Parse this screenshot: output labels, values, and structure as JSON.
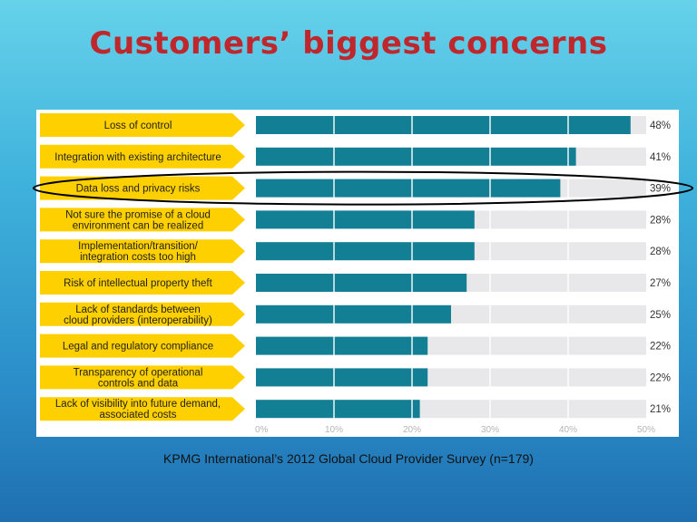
{
  "title": "Customers’ biggest concerns",
  "source": "KPMG International’s 2012 Global Cloud Provider Survey (n=179)",
  "colors": {
    "title": "#c0272d",
    "label_bg": "#ffd000",
    "bar": "#127f94",
    "track": "#e8e8ea",
    "highlight": "#000000",
    "axis_text": "#b5b5b5"
  },
  "chart_data": {
    "type": "bar",
    "orientation": "horizontal",
    "categories": [
      "Loss of control",
      "Integration with existing architecture",
      "Data loss and privacy risks",
      "Not sure the promise of a cloud environment can be realized",
      "Implementation/transition/ integration costs too high",
      "Risk of intellectual property theft",
      "Lack of standards between cloud providers (interoperability)",
      "Legal and regulatory compliance",
      "Transparency of operational controls and data",
      "Lack of visibility into future demand, associated costs"
    ],
    "category_lines": [
      [
        "Loss of control"
      ],
      [
        "Integration with existing architecture"
      ],
      [
        "Data loss and privacy risks"
      ],
      [
        "Not sure the promise of a cloud",
        "environment can be realized"
      ],
      [
        "Implementation/transition/",
        "integration costs too high"
      ],
      [
        "Risk of intellectual property theft"
      ],
      [
        "Lack of standards between",
        "cloud providers (interoperability)"
      ],
      [
        "Legal and regulatory compliance"
      ],
      [
        "Transparency of operational",
        "controls and data"
      ],
      [
        "Lack of visibility into future demand,",
        "associated costs"
      ]
    ],
    "values": [
      48,
      41,
      39,
      28,
      28,
      27,
      25,
      22,
      22,
      21
    ],
    "value_labels": [
      "48%",
      "41%",
      "39%",
      "28%",
      "28%",
      "27%",
      "25%",
      "22%",
      "22%",
      "21%"
    ],
    "xticks": [
      "0%",
      "10%",
      "20%",
      "30%",
      "40%",
      "50%"
    ],
    "xlim": [
      0,
      50
    ],
    "highlighted_category": "Data loss and privacy risks",
    "grid": true
  }
}
